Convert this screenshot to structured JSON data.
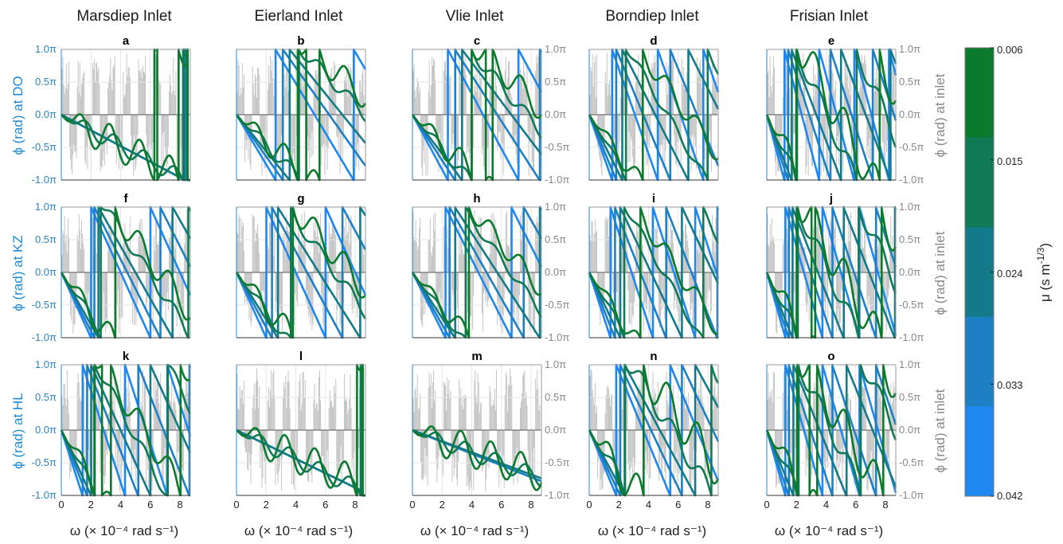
{
  "figure": {
    "column_titles": [
      "Marsdiep Inlet",
      "Eierland Inlet",
      "Vlie Inlet",
      "Borndiep Inlet",
      "Frisian Inlet"
    ],
    "row_ylabels": [
      "ϕ (rad) at DO",
      "ϕ (rad) at KZ",
      "ϕ (rad) at HL"
    ],
    "right_ylabel": "ϕ (rad) at inlet",
    "xlabel": "ω (× 10⁻⁴ rad s⁻¹)",
    "panel_labels": [
      "a",
      "b",
      "c",
      "d",
      "e",
      "f",
      "g",
      "h",
      "i",
      "j",
      "k",
      "l",
      "m",
      "n",
      "o"
    ],
    "y_tick_labels": [
      "1.0π",
      "0.5π",
      "0.0π",
      "-0.5π",
      "-1.0π"
    ],
    "x_tick_labels": [
      "0",
      "2",
      "4",
      "6",
      "8"
    ],
    "colorbar": {
      "label": "μ (s m⁻¹ᐟ³)",
      "label_text": "μ (s m",
      "label_sup": "-1/3",
      "label_close": ")",
      "tick_labels": [
        "0.006",
        "0.015",
        "0.024",
        "0.033",
        "0.042"
      ],
      "colors": [
        "#0a7a2c",
        "#0f7a55",
        "#127a88",
        "#1d7fc4",
        "#1e87f0"
      ]
    }
  },
  "chart_data": {
    "type": "line",
    "xlim": [
      0,
      8.7
    ],
    "ylim": [
      -1.0,
      1.0
    ],
    "y_unit": "π rad",
    "x_unit": "10⁻⁴ rad s⁻¹",
    "grid": true,
    "background_spectrum": "grey vertical bars (tidal spectrum) behind every panel",
    "mu_values": [
      0.042,
      0.033,
      0.024,
      0.015,
      0.006
    ],
    "panels": [
      {
        "label": "a",
        "row": 0,
        "col": 0,
        "slopes": [
          0.12,
          0.12,
          0.12,
          0.12,
          0.12
        ],
        "wiggle": 0.25,
        "jump": 8.5
      },
      {
        "label": "b",
        "row": 0,
        "col": 1,
        "slopes": [
          0.38,
          0.32,
          0.28,
          0.23,
          0.2
        ],
        "wiggle": 0.2
      },
      {
        "label": "c",
        "row": 0,
        "col": 2,
        "slopes": [
          0.42,
          0.35,
          0.3,
          0.26,
          0.22
        ],
        "wiggle": 0.2
      },
      {
        "label": "d",
        "row": 0,
        "col": 3,
        "slopes": [
          0.65,
          0.55,
          0.45,
          0.38,
          0.3
        ],
        "wiggle": 0.15
      },
      {
        "label": "e",
        "row": 0,
        "col": 4,
        "slopes": [
          0.85,
          0.7,
          0.6,
          0.5,
          0.42
        ],
        "wiggle": 0.3
      },
      {
        "label": "f",
        "row": 1,
        "col": 0,
        "slopes": [
          0.5,
          0.45,
          0.4,
          0.34,
          0.3
        ],
        "wiggle": 0.2
      },
      {
        "label": "g",
        "row": 1,
        "col": 1,
        "slopes": [
          0.5,
          0.42,
          0.36,
          0.3,
          0.26
        ],
        "wiggle": 0.2
      },
      {
        "label": "h",
        "row": 1,
        "col": 2,
        "slopes": [
          0.45,
          0.4,
          0.35,
          0.3,
          0.26
        ],
        "wiggle": 0.15
      },
      {
        "label": "i",
        "row": 1,
        "col": 3,
        "slopes": [
          0.7,
          0.58,
          0.48,
          0.4,
          0.33
        ],
        "wiggle": 0.15
      },
      {
        "label": "j",
        "row": 1,
        "col": 4,
        "slopes": [
          0.8,
          0.68,
          0.58,
          0.48,
          0.4
        ],
        "wiggle": 0.3
      },
      {
        "label": "k",
        "row": 2,
        "col": 0,
        "slopes": [
          0.7,
          0.58,
          0.5,
          0.42,
          0.36
        ],
        "wiggle": 0.2
      },
      {
        "label": "l",
        "row": 2,
        "col": 1,
        "slopes": [
          0.11,
          0.11,
          0.11,
          0.11,
          0.1
        ],
        "wiggle": 0.25,
        "jump": 8.5
      },
      {
        "label": "m",
        "row": 2,
        "col": 2,
        "slopes": [
          0.09,
          0.09,
          0.085,
          0.085,
          0.08
        ],
        "wiggle": 0.25
      },
      {
        "label": "n",
        "row": 2,
        "col": 3,
        "slopes": [
          0.55,
          0.48,
          0.42,
          0.36,
          0.3
        ],
        "wiggle": 0.3
      },
      {
        "label": "o",
        "row": 2,
        "col": 4,
        "slopes": [
          0.8,
          0.68,
          0.56,
          0.46,
          0.38
        ],
        "wiggle": 0.3
      }
    ]
  }
}
